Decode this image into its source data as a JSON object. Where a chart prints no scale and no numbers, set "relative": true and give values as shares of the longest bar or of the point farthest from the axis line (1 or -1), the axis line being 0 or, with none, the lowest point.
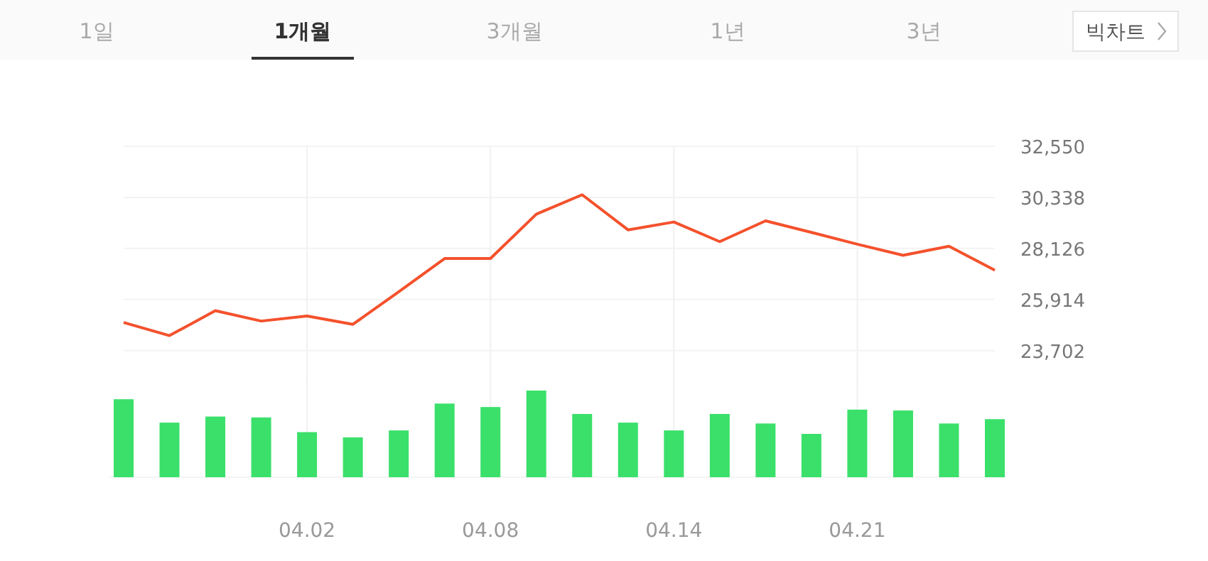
{
  "chart_data": [
    {
      "type": "line",
      "categories": [
        null,
        null,
        null,
        null,
        "04.02",
        null,
        null,
        null,
        "04.08",
        null,
        null,
        null,
        "04.14",
        null,
        null,
        null,
        "04.21",
        null,
        null,
        null
      ],
      "series": [
        {
          "color": "#f4512c",
          "values": [
            24920,
            24350,
            25430,
            24980,
            25200,
            24840,
            26250,
            27690,
            27690,
            29610,
            30450,
            28930,
            29270,
            28420,
            29320,
            28820,
            28310,
            27830,
            28220,
            27180
          ]
        }
      ],
      "ylim": [
        22400,
        32550
      ],
      "yticks": [
        {
          "value": 32550,
          "label": "32,550"
        },
        {
          "value": 30338,
          "label": "30,338"
        },
        {
          "value": 28126,
          "label": "28,126"
        },
        {
          "value": 25914,
          "label": "25,914"
        },
        {
          "value": 23702,
          "label": "23,702"
        }
      ],
      "grid": true,
      "tick_labels": "y",
      "marker": "none",
      "line_style": "solid",
      "annotations": [
        "1일",
        "1개월",
        "3개월",
        "1년",
        "3년",
        "빅차트"
      ]
    },
    {
      "type": "bar",
      "relative": true,
      "categories": [
        null,
        null,
        null,
        null,
        "04.02",
        null,
        null,
        null,
        "04.08",
        null,
        null,
        null,
        "04.14",
        null,
        null,
        null,
        "04.21",
        null,
        null,
        null
      ],
      "series": [
        {
          "color": "#3ae06a",
          "values": [
            0.9,
            0.63,
            0.7,
            0.69,
            0.52,
            0.46,
            0.54,
            0.85,
            0.81,
            1,
            0.73,
            0.63,
            0.54,
            0.73,
            0.62,
            0.5,
            0.78,
            0.77,
            0.62,
            0.67
          ]
        }
      ],
      "grid": "x",
      "tick_labels": "x"
    }
  ]
}
